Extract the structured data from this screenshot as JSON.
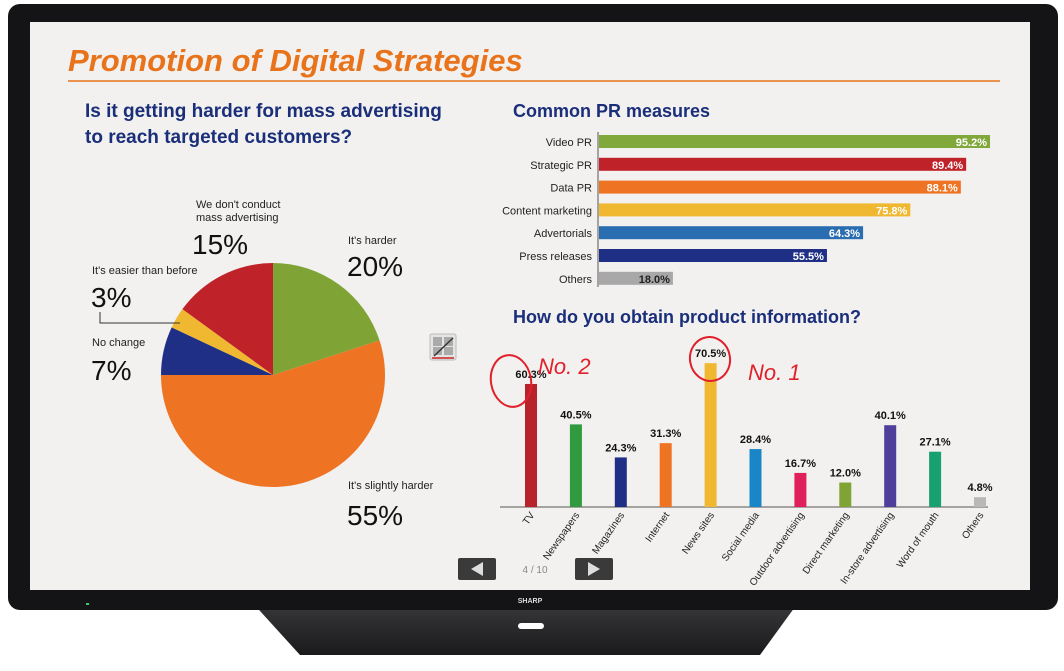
{
  "slide": {
    "title": "Promotion of Digital Strategies",
    "page_indicator": "4 / 10",
    "brand": "SHARP",
    "annotations": [
      "No. 2",
      "No. 1"
    ]
  },
  "colors": {
    "title": "#e8731a",
    "heading": "#1a2e7a"
  },
  "chart_data": [
    {
      "type": "pie",
      "title": "Is it getting harder for mass advertising to reach targeted customers?",
      "title_lines": [
        "Is it getting harder for mass advertising",
        "to reach targeted customers?"
      ],
      "slices": [
        {
          "label": "It's harder",
          "value": 20,
          "display": "20%",
          "color": "#7fa334"
        },
        {
          "label": "It's slightly harder",
          "value": 55,
          "display": "55%",
          "color": "#ee7424"
        },
        {
          "label": "No change",
          "value": 7,
          "display": "7%",
          "color": "#1f2f86"
        },
        {
          "label": "It's easier than before",
          "value": 3,
          "display": "3%",
          "color": "#f0b830"
        },
        {
          "label": "We don't conduct mass advertising",
          "label_lines": [
            "We don't conduct",
            "mass advertising"
          ],
          "value": 15,
          "display": "15%",
          "color": "#c0222a"
        }
      ]
    },
    {
      "type": "bar",
      "orientation": "horizontal",
      "title": "Common PR measures",
      "categories": [
        "Video PR",
        "Strategic PR",
        "Data PR",
        "Content marketing",
        "Advertorials",
        "Press releases",
        "Others"
      ],
      "values": [
        95.2,
        89.4,
        88.1,
        75.8,
        64.3,
        55.5,
        18.0
      ],
      "labels": [
        "95.2%",
        "89.4%",
        "88.1%",
        "75.8%",
        "64.3%",
        "55.5%",
        "18.0%"
      ],
      "colors": [
        "#80a83a",
        "#c0222a",
        "#ee7424",
        "#f0b830",
        "#2a6db0",
        "#1f2f86",
        "#a8a8a8"
      ],
      "xlim": [
        0,
        100
      ]
    },
    {
      "type": "bar",
      "orientation": "vertical",
      "title": "How do you obtain product information?",
      "categories": [
        "TV",
        "Newspapers",
        "Magazines",
        "Internet",
        "News sites",
        "Social media",
        "Outdoor advertising",
        "Direct marketing",
        "In-store advertising",
        "Word of mouth",
        "Others"
      ],
      "values": [
        60.3,
        40.5,
        24.3,
        31.3,
        70.5,
        28.4,
        16.7,
        12.0,
        40.1,
        27.1,
        4.8
      ],
      "labels": [
        "60.3%",
        "40.5%",
        "24.3%",
        "31.3%",
        "70.5%",
        "28.4%",
        "16.7%",
        "12.0%",
        "40.1%",
        "27.1%",
        "4.8%"
      ],
      "colors": [
        "#b8222a",
        "#2f9a3e",
        "#1f2f86",
        "#ee7424",
        "#f0b830",
        "#1a86c8",
        "#e0205a",
        "#7fa334",
        "#4f3f9a",
        "#18a070",
        "#b8b8b8"
      ],
      "ylim": [
        0,
        75
      ]
    }
  ]
}
